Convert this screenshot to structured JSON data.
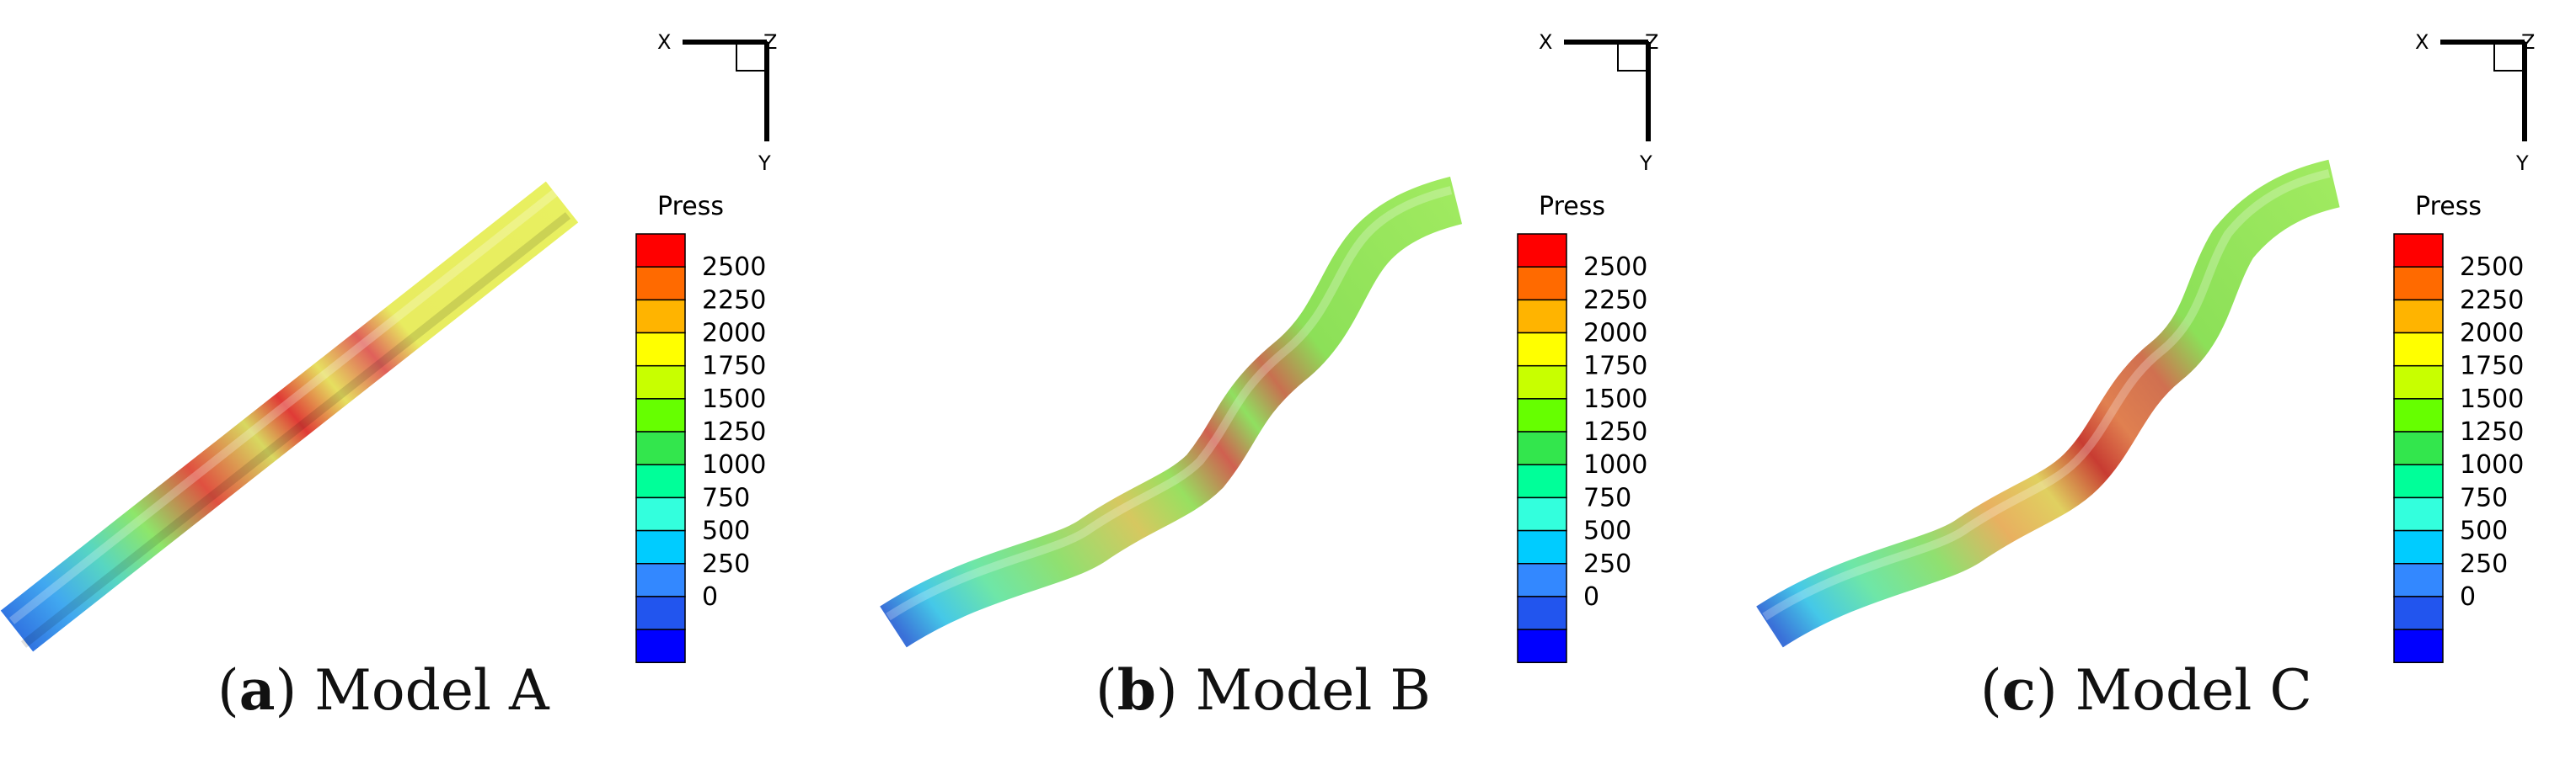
{
  "panels": [
    {
      "id": "a",
      "letter": "a",
      "caption": "Model A",
      "colorbar_title": "Press",
      "axis_labels": {
        "x": "X",
        "y": "Y",
        "z": "Z"
      }
    },
    {
      "id": "b",
      "letter": "b",
      "caption": "Model B",
      "colorbar_title": "Press",
      "axis_labels": {
        "x": "X",
        "y": "Y",
        "z": "Z"
      }
    },
    {
      "id": "c",
      "letter": "c",
      "caption": "Model C",
      "colorbar_title": "Press",
      "axis_labels": {
        "x": "X",
        "y": "Y",
        "z": "Z"
      }
    }
  ],
  "colorbar": {
    "levels": [
      "2500",
      "2250",
      "2000",
      "1750",
      "1500",
      "1250",
      "1000",
      "750",
      "500",
      "250",
      "0"
    ],
    "colors": [
      "#ff0000",
      "#ff6a00",
      "#ffb400",
      "#ffff00",
      "#c8ff00",
      "#66ff00",
      "#33e64d",
      "#00ff99",
      "#33ffdd",
      "#00ccff",
      "#3388ff",
      "#2255ee",
      "#0000ff"
    ]
  }
}
